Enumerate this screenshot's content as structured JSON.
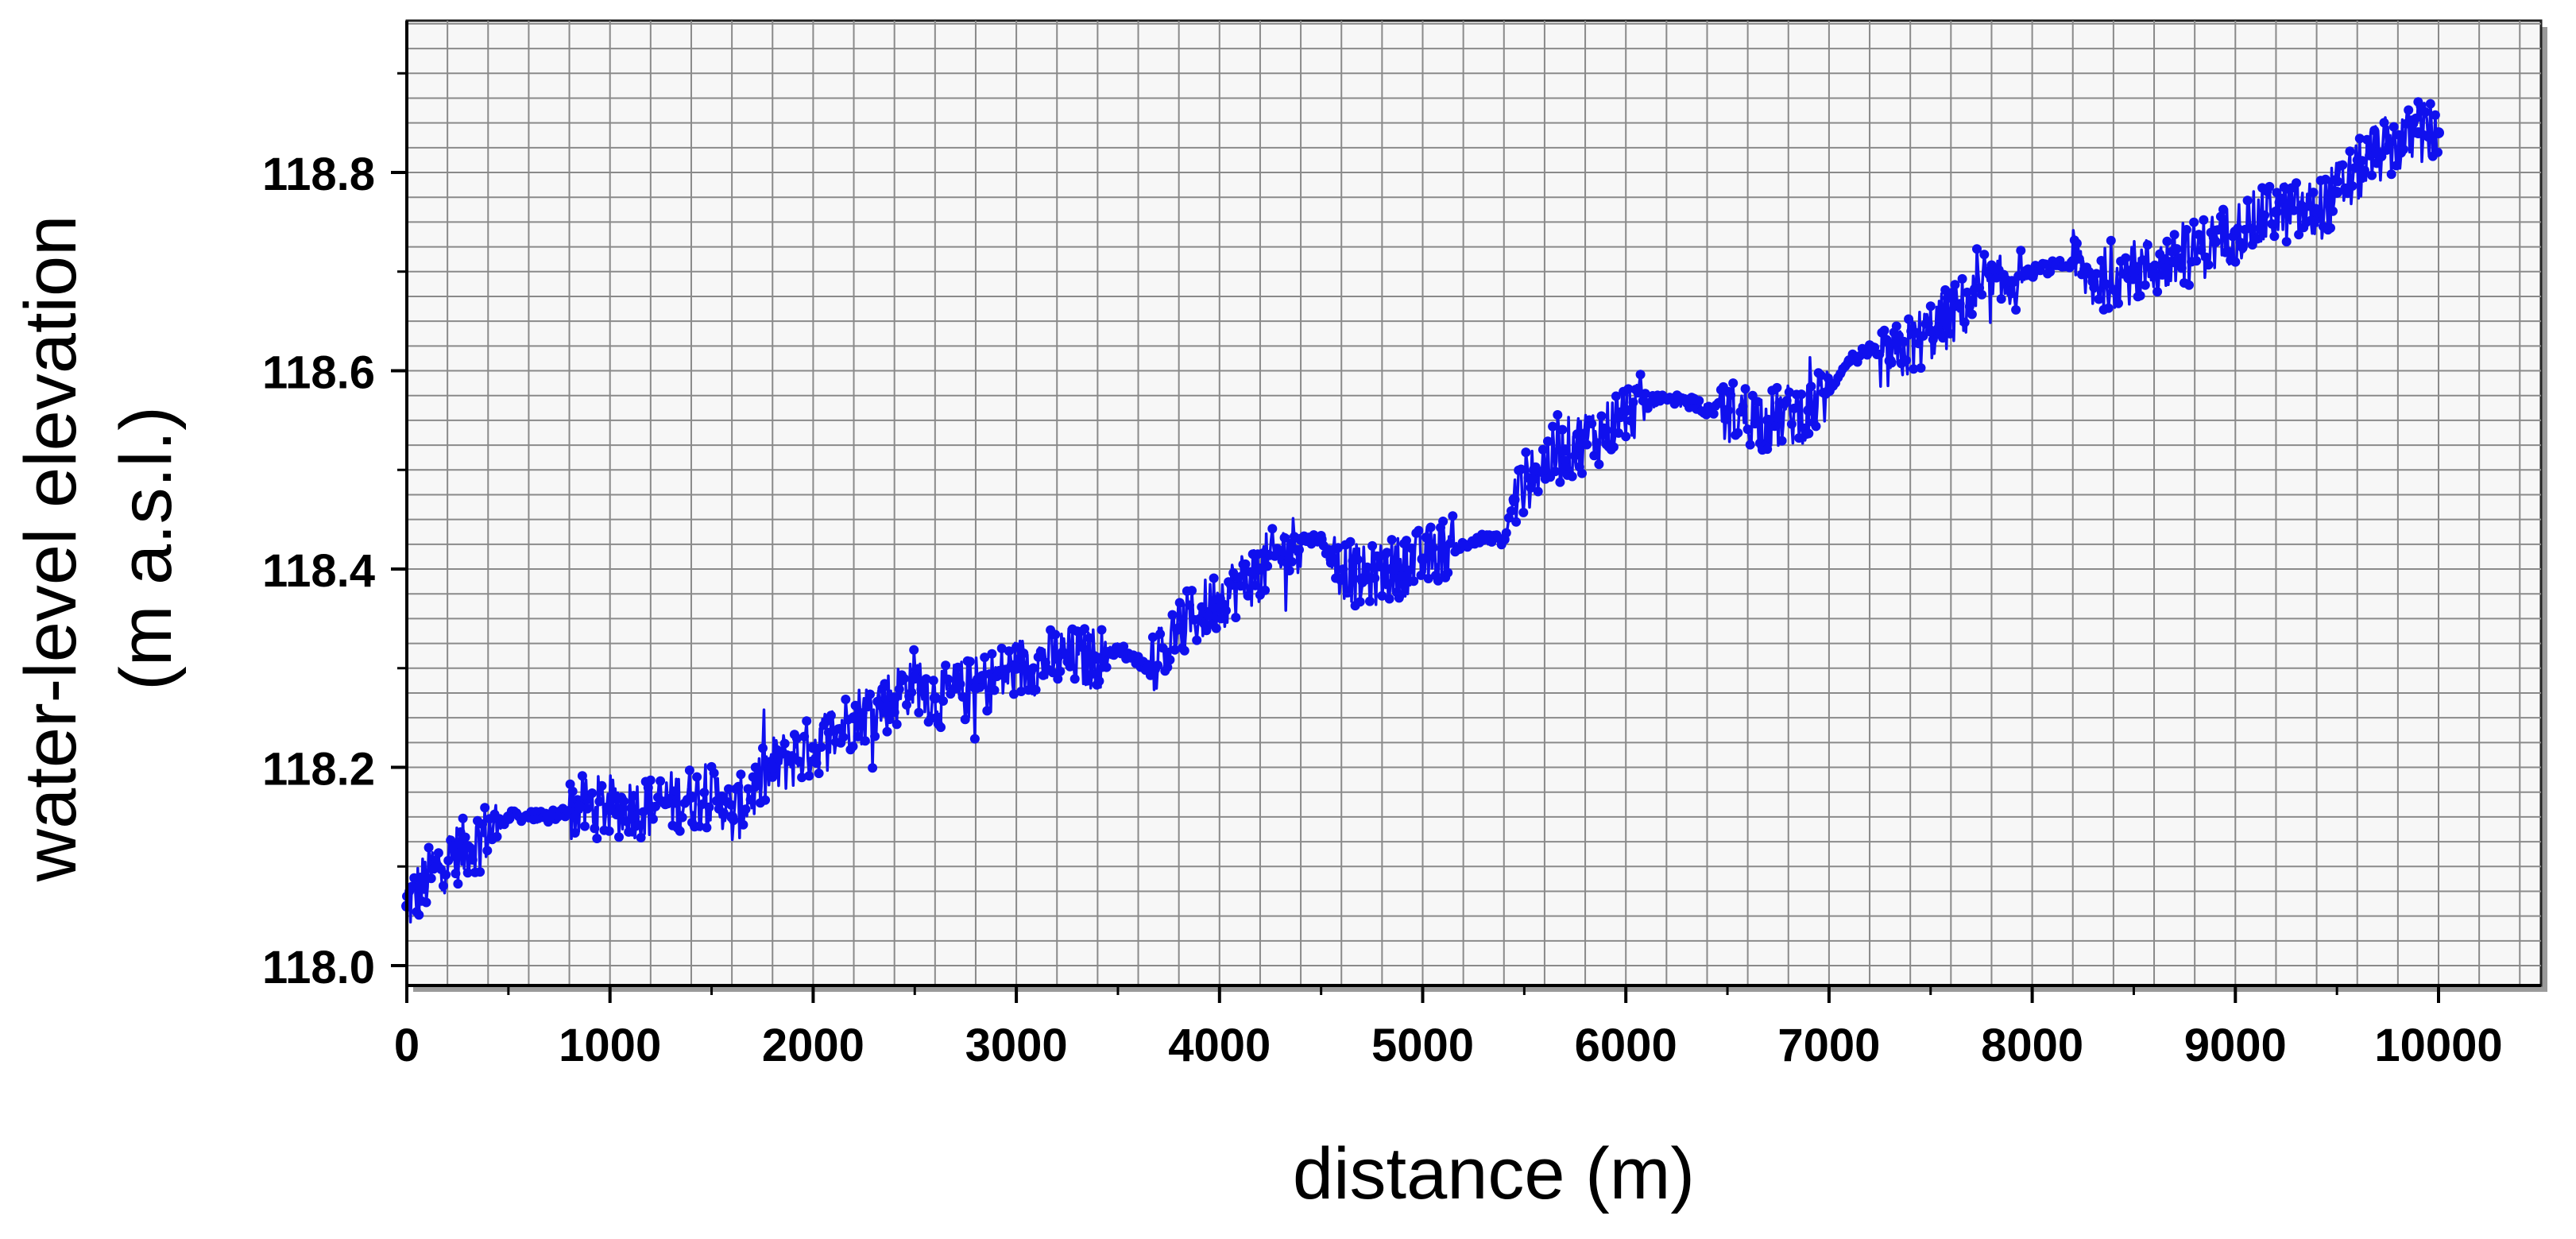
{
  "chart_data": {
    "type": "line",
    "title": "",
    "xlabel": "distance (m)",
    "ylabel_line1": "water-level elevation",
    "ylabel_line2": "(m a.s.l.)",
    "xlim": [
      0,
      10500
    ],
    "ylim": [
      117.98,
      118.95
    ],
    "xticks": [
      0,
      1000,
      2000,
      3000,
      4000,
      5000,
      6000,
      7000,
      8000,
      9000,
      10000
    ],
    "xtick_labels": [
      "0",
      "1000",
      "2000",
      "3000",
      "4000",
      "5000",
      "6000",
      "7000",
      "8000",
      "9000",
      "10000"
    ],
    "yticks": [
      118.0,
      118.2,
      118.4,
      118.6,
      118.8
    ],
    "ytick_labels": [
      "118.0",
      "118.2",
      "118.4",
      "118.6",
      "118.8"
    ],
    "grid": true,
    "legend": "none",
    "series_color": "#1010ee",
    "series": [
      {
        "x": [
          0,
          150,
          300,
          500,
          700,
          850,
          1000,
          1200,
          1400,
          1550,
          1600,
          1800,
          2000,
          2200,
          2400,
          2500,
          2600,
          2800,
          3000,
          3200,
          3400,
          3500,
          3650,
          3800,
          4000,
          4200,
          4400,
          4500,
          4550,
          4700,
          4850,
          5000,
          5100,
          5300,
          5400,
          5450,
          5550,
          5700,
          5900,
          6000,
          6150,
          6300,
          6400,
          6500,
          6700,
          6900,
          7000,
          7100,
          7200,
          7300,
          7500,
          7700,
          7900,
          8000,
          8200,
          8300,
          8500,
          8700,
          8900,
          9000,
          9200,
          9400,
          9500,
          9700,
          9900,
          10000
        ],
        "y": [
          118.06,
          118.1,
          118.12,
          118.15,
          118.15,
          118.16,
          118.16,
          118.16,
          118.17,
          118.17,
          118.15,
          118.2,
          118.22,
          118.25,
          118.27,
          118.29,
          118.27,
          118.28,
          118.3,
          118.31,
          118.31,
          118.32,
          118.3,
          118.34,
          118.37,
          118.4,
          118.43,
          118.43,
          118.41,
          118.39,
          118.4,
          118.41,
          118.42,
          118.43,
          118.43,
          118.47,
          118.5,
          118.52,
          118.54,
          118.56,
          118.57,
          118.57,
          118.56,
          118.56,
          118.55,
          118.56,
          118.58,
          118.61,
          118.62,
          118.61,
          118.64,
          118.67,
          118.69,
          118.7,
          118.71,
          118.69,
          118.7,
          118.71,
          118.73,
          118.74,
          118.76,
          118.76,
          118.78,
          118.82,
          118.84,
          118.84
        ]
      }
    ]
  }
}
